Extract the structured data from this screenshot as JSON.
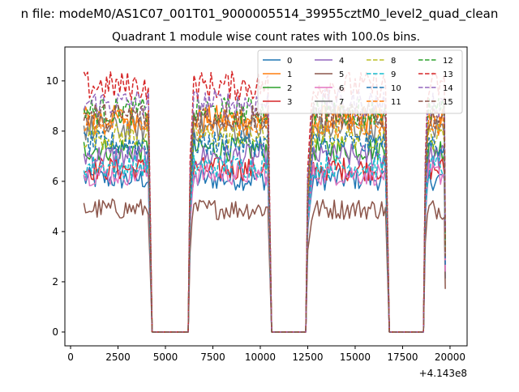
{
  "chart_data": {
    "type": "line",
    "suptitle": "n file: modeM0/AS1C07_001T01_9000005514_39955cztM0_level2_quad_clean",
    "title": "Quadrant 1 module wise count rates with 100.0s bins.",
    "xlabel": "",
    "ylabel": "",
    "x_offset_label": "+4.143e8",
    "xlim": [
      -300,
      20900
    ],
    "ylim": [
      -0.55,
      11.35
    ],
    "xticks": [
      0,
      2500,
      5000,
      7500,
      10000,
      12500,
      15000,
      17500,
      20000
    ],
    "xtick_labels": [
      "0",
      "2500",
      "5000",
      "7500",
      "10000",
      "12500",
      "15000",
      "17500",
      "20000"
    ],
    "yticks": [
      0,
      2,
      4,
      6,
      8,
      10
    ],
    "ytick_labels": [
      "0",
      "2",
      "4",
      "6",
      "8",
      "10"
    ],
    "grid": false,
    "legend_position": "top-right",
    "legend_columns": 4,
    "gaps": [
      {
        "x_start": 4250,
        "x_end": 6250,
        "ramp_end": 6500
      },
      {
        "x_start": 10550,
        "x_end": 12450,
        "ramp_end": 12800
      },
      {
        "x_start": 16750,
        "x_end": 18650,
        "ramp_end": 18850
      }
    ],
    "x_start": 700,
    "x_end": 19750,
    "series": [
      {
        "name": "0",
        "level": 6.1,
        "color": "#1f77b4",
        "dash": false
      },
      {
        "name": "1",
        "level": 8.5,
        "color": "#ff7f0e",
        "dash": false
      },
      {
        "name": "2",
        "level": 7.3,
        "color": "#2ca02c",
        "dash": false
      },
      {
        "name": "3",
        "level": 6.5,
        "color": "#d62728",
        "dash": false
      },
      {
        "name": "4",
        "level": 7.0,
        "color": "#9467bd",
        "dash": false
      },
      {
        "name": "5",
        "level": 4.9,
        "color": "#8c564b",
        "dash": false
      },
      {
        "name": "6",
        "level": 6.3,
        "color": "#e377c2",
        "dash": false
      },
      {
        "name": "7",
        "level": 8.1,
        "color": "#7f7f7f",
        "dash": false
      },
      {
        "name": "8",
        "level": 7.8,
        "color": "#bcbd22",
        "dash": true
      },
      {
        "name": "9",
        "level": 6.6,
        "color": "#17becf",
        "dash": true
      },
      {
        "name": "10",
        "level": 7.5,
        "color": "#1f77b4",
        "dash": true
      },
      {
        "name": "11",
        "level": 8.3,
        "color": "#ff7f0e",
        "dash": true
      },
      {
        "name": "12",
        "level": 8.8,
        "color": "#2ca02c",
        "dash": true
      },
      {
        "name": "13",
        "level": 9.8,
        "color": "#d62728",
        "dash": true
      },
      {
        "name": "14",
        "level": 9.1,
        "color": "#9467bd",
        "dash": true
      },
      {
        "name": "15",
        "level": 8.6,
        "color": "#8c564b",
        "dash": true
      }
    ]
  }
}
